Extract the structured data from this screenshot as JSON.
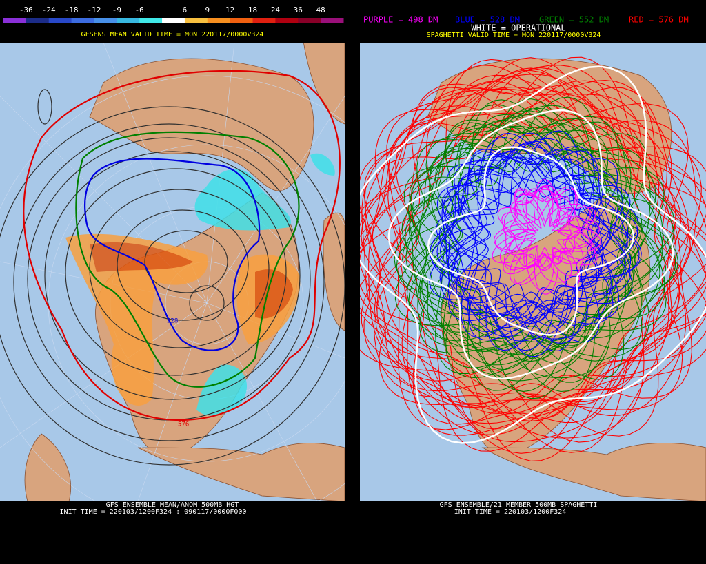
{
  "left_panel": {
    "colorbar": {
      "labels": [
        "-36",
        "-24",
        "-18",
        "-12",
        "-9",
        "-6",
        "6",
        "9",
        "12",
        "18",
        "24",
        "36",
        "48"
      ],
      "colors": [
        "#8a30d8",
        "#1c2c88",
        "#2848c8",
        "#3c6ce0",
        "#4890e8",
        "#38b8e0",
        "#40e8e8",
        "#ffffff",
        "#f8c040",
        "#f89020",
        "#f06010",
        "#e02010",
        "#b00010",
        "#880028",
        "#9a107a"
      ]
    },
    "valid_time": "GFSENS MEAN VALID TIME = MON 220117/0000V324",
    "contour_labels": [
      "576",
      "528"
    ],
    "footer": [
      "GFS ENSEMBLE MEAN/ANOM 500MB HGT",
      "INIT TIME = 220103/1200F324 : 090117/0000F000"
    ]
  },
  "right_panel": {
    "legend": [
      {
        "text": "PURPLE = 498 DM",
        "color": "#ff00ff"
      },
      {
        "text": "BLUE = 528 DM",
        "color": "#0000ff"
      },
      {
        "text": "GREEN = 552 DM",
        "color": "#008000"
      },
      {
        "text": "RED = 576 DM",
        "color": "#ff0000"
      }
    ],
    "operational": "WHITE = OPERATIONAL",
    "valid_time": "SPAGHETTI VALID TIME = MON 220117/0000V324",
    "footer": [
      "GFS ENSEMBLE/21 MEMBER 500MB SPAGHETTI",
      "INIT TIME = 220103/1200F324"
    ]
  }
}
